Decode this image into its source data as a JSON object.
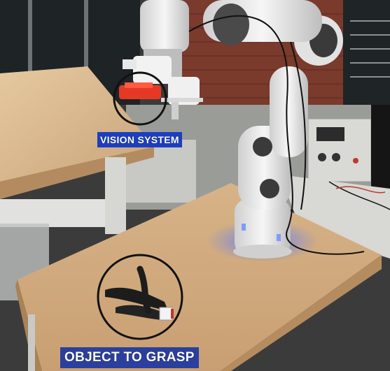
{
  "labels": {
    "vision_system": "VISION SYSTEM",
    "object_to_grasp": "OBJECT TO GRASP"
  },
  "colors": {
    "label_background": "#1c3fbf",
    "highlight_circle": "#111111",
    "table_wood": "#d9b58a",
    "robot_white": "#ececec",
    "led_glow": "#4a6bff"
  }
}
